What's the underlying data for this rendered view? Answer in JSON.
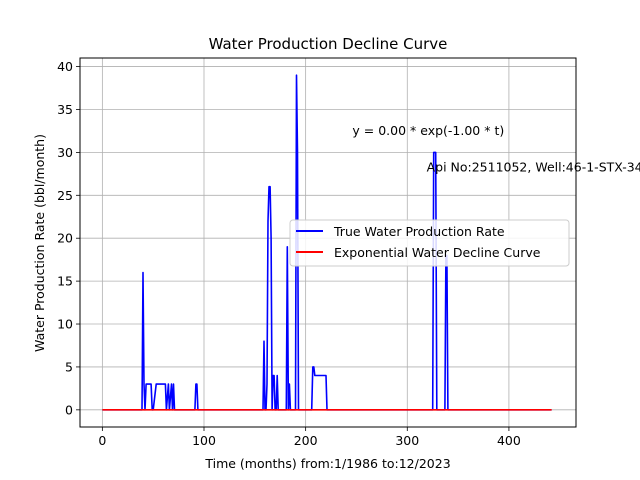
{
  "chart_data": {
    "type": "line",
    "title": "Water Production Decline Curve",
    "xlabel": "Time (months) from:1/1986 to:12/2023",
    "ylabel": "Water Production Rate (bbl/month)",
    "xlim": [
      -22,
      466
    ],
    "ylim": [
      -2,
      41
    ],
    "xticks": [
      0,
      100,
      200,
      300,
      400
    ],
    "yticks": [
      0,
      5,
      10,
      15,
      20,
      25,
      30,
      35,
      40
    ],
    "grid": true,
    "legend_position": "center-right",
    "annotations": [
      {
        "text": "y = 0.00 * exp(-1.00 * t)",
        "x": 246,
        "y": 32
      },
      {
        "text": "Api No:2511052, Well:46-1-STX-34",
        "x": 319,
        "y": 27.8
      }
    ],
    "series": [
      {
        "name": "True Water Production Rate",
        "color": "#0000ff",
        "x": [
          0,
          39,
          40,
          41,
          42,
          43,
          44,
          48,
          49,
          50,
          53,
          54,
          62,
          63,
          65,
          66,
          68,
          69,
          70,
          71,
          72,
          91,
          92,
          93,
          94,
          95,
          158,
          159,
          160,
          161,
          162,
          163,
          164,
          165,
          166,
          167,
          168,
          169,
          170,
          171,
          172,
          173,
          174,
          181,
          182,
          183,
          184,
          185,
          186,
          190,
          191,
          192,
          193,
          194,
          195,
          206,
          207,
          208,
          209,
          210,
          211,
          212,
          215,
          220,
          221,
          325,
          326,
          327,
          328,
          329,
          337,
          338,
          339,
          340,
          341,
          442
        ],
        "y": [
          0,
          0,
          16,
          3,
          0,
          3,
          3,
          3,
          0,
          0,
          3,
          3,
          3,
          0,
          3,
          0,
          3,
          0,
          3,
          0,
          0,
          0,
          3,
          3,
          0,
          0,
          0,
          8,
          0,
          0,
          3,
          22,
          26,
          26,
          20,
          0,
          4,
          4,
          0,
          0,
          4,
          0,
          0,
          0,
          19,
          0,
          3,
          0,
          0,
          0,
          39,
          30,
          0,
          0,
          0,
          0,
          5,
          5,
          4,
          4,
          4,
          4,
          4,
          4,
          0,
          0,
          30,
          30,
          30,
          0,
          0,
          18,
          18,
          0,
          0,
          0
        ]
      },
      {
        "name": "Exponential Water Decline Curve",
        "color": "#ff0000",
        "x": [
          0,
          442
        ],
        "y": [
          0,
          0
        ]
      }
    ]
  }
}
